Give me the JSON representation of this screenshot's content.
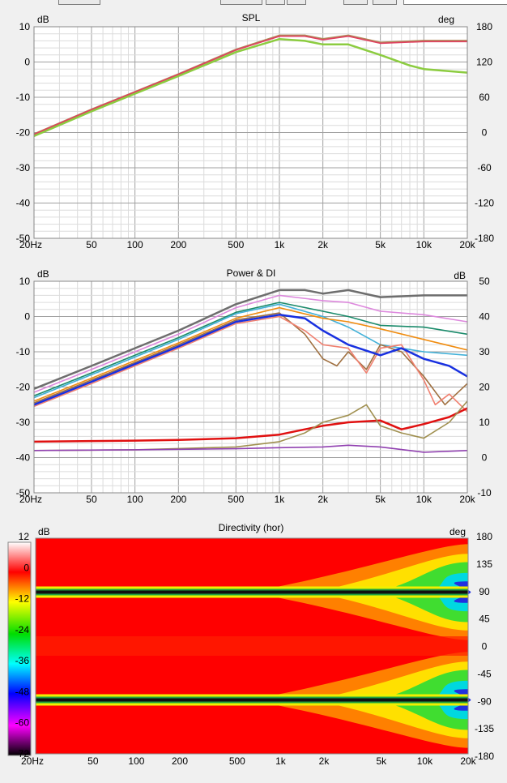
{
  "chart_data": [
    {
      "type": "line",
      "title": "SPL",
      "ylabel_left": "dB",
      "ylabel_right": "deg",
      "xscale": "log",
      "xlim": [
        20,
        20000
      ],
      "ylim_left": [
        -50,
        10
      ],
      "ylim_right": [
        -180,
        180
      ],
      "x_ticks": [
        "20Hz",
        "50",
        "100",
        "200",
        "500",
        "1k",
        "2k",
        "5k",
        "10k",
        "20k"
      ],
      "y_ticks_left": [
        "10",
        "0",
        "-10",
        "-20",
        "-30",
        "-40",
        "-50"
      ],
      "y_ticks_right": [
        "180",
        "120",
        "60",
        "0",
        "-60",
        "-120",
        "-180"
      ],
      "grid": true,
      "series": [
        {
          "color": "#b08a5a",
          "x": [
            20,
            50,
            100,
            200,
            500,
            1000,
            1500,
            2000,
            3000,
            5000,
            10000,
            20000
          ],
          "y": [
            -20.5,
            -13.5,
            -8.5,
            -3.5,
            3.5,
            7.5,
            7.5,
            6.5,
            7.5,
            5.5,
            6,
            6
          ]
        },
        {
          "color": "#e04060",
          "x": [
            20,
            50,
            100,
            200,
            500,
            1000,
            1500,
            2000,
            3000,
            5000,
            10000,
            20000
          ],
          "y": [
            -20.5,
            -13.5,
            -8.5,
            -3.5,
            3.4,
            7.3,
            7.3,
            6.3,
            7.3,
            5.3,
            5.8,
            5.8
          ]
        },
        {
          "color": "#8ccc40",
          "x": [
            20,
            50,
            100,
            200,
            500,
            1000,
            1500,
            2000,
            3000,
            5000,
            8000,
            10000,
            14000,
            20000
          ],
          "y": [
            -21,
            -14,
            -9,
            -4,
            2.8,
            6.5,
            6,
            5,
            5,
            2,
            -1,
            -2,
            -2.5,
            -3
          ]
        }
      ]
    },
    {
      "type": "line",
      "title": "Power & DI",
      "ylabel_left": "dB",
      "ylabel_right": "dB",
      "xscale": "log",
      "xlim": [
        20,
        20000
      ],
      "ylim_left": [
        -50,
        10
      ],
      "ylim_right": [
        -10,
        50
      ],
      "x_ticks": [
        "20Hz",
        "50",
        "100",
        "200",
        "500",
        "1k",
        "2k",
        "5k",
        "10k",
        "20k"
      ],
      "y_ticks_left": [
        "10",
        "0",
        "-10",
        "-20",
        "-30",
        "-40",
        "-50"
      ],
      "y_ticks_right": [
        "50",
        "40",
        "30",
        "20",
        "10",
        "0",
        "-10"
      ],
      "grid": true,
      "series": [
        {
          "color": "#6e6e6e",
          "x": [
            20,
            50,
            100,
            200,
            500,
            1000,
            1500,
            2000,
            3000,
            5000,
            10000,
            20000
          ],
          "y": [
            -20.5,
            -14,
            -9,
            -4,
            3.5,
            7.5,
            7.5,
            6.5,
            7.5,
            5.5,
            6,
            6
          ]
        },
        {
          "color": "#dd88dd",
          "x": [
            20,
            50,
            100,
            200,
            500,
            1000,
            2000,
            3000,
            5000,
            10000,
            20000
          ],
          "y": [
            -21.5,
            -15,
            -10,
            -5,
            2.5,
            6,
            4.5,
            4,
            1.5,
            0.5,
            -1.5
          ]
        },
        {
          "color": "#1a8a6a",
          "x": [
            20,
            50,
            100,
            200,
            500,
            1000,
            2000,
            3000,
            5000,
            10000,
            20000
          ],
          "y": [
            -22.5,
            -16,
            -11,
            -6,
            1.2,
            4,
            1.5,
            0,
            -2.5,
            -3,
            -5
          ]
        },
        {
          "color": "#40b0d8",
          "x": [
            20,
            50,
            100,
            200,
            500,
            1000,
            2000,
            3000,
            5000,
            10000,
            20000
          ],
          "y": [
            -23,
            -16.5,
            -11.5,
            -6.5,
            0.8,
            3.5,
            0,
            -3,
            -8,
            -10,
            -11
          ]
        },
        {
          "color": "#f08c10",
          "x": [
            20,
            50,
            100,
            200,
            500,
            1000,
            2000,
            3000,
            5000,
            10000,
            20000
          ],
          "y": [
            -24,
            -17.5,
            -12.5,
            -7.5,
            -0.5,
            2.5,
            -0.5,
            -1.5,
            -3.5,
            -6.5,
            -9.5
          ]
        },
        {
          "color": "#a07040",
          "x": [
            20,
            50,
            100,
            200,
            500,
            1000,
            1500,
            2000,
            2500,
            3000,
            4000,
            5000,
            7000,
            10000,
            14000,
            20000
          ],
          "y": [
            -24.5,
            -18,
            -13,
            -8,
            -1,
            1,
            -5,
            -12,
            -14,
            -10,
            -15,
            -8,
            -10,
            -17,
            -25,
            -19
          ]
        },
        {
          "color": "#f08070",
          "x": [
            20,
            50,
            100,
            200,
            500,
            1000,
            1500,
            2000,
            3000,
            4000,
            5000,
            7000,
            10000,
            12000,
            15000,
            20000
          ],
          "y": [
            -25.5,
            -19,
            -14,
            -9,
            -2,
            0,
            -4,
            -8,
            -9,
            -16,
            -9,
            -8,
            -18,
            -25,
            -22,
            -27
          ]
        },
        {
          "color": "#1830e0",
          "x": [
            20,
            50,
            100,
            200,
            500,
            1000,
            1500,
            2000,
            3000,
            5000,
            7000,
            10000,
            15000,
            20000
          ],
          "y": [
            -25,
            -18.5,
            -13.5,
            -8.5,
            -1.5,
            0.5,
            -0.5,
            -4,
            -8,
            -11,
            -9,
            -12,
            -14,
            -17
          ]
        },
        {
          "color": "#e01010",
          "x": [
            20,
            50,
            100,
            200,
            500,
            1000,
            1500,
            2000,
            3000,
            5000,
            7000,
            10000,
            15000,
            20000
          ],
          "y": [
            -35.5,
            -35.3,
            -35.2,
            -35,
            -34.5,
            -33.5,
            -32,
            -31,
            -30,
            -29.5,
            -32,
            -30.5,
            -28.5,
            -26
          ]
        },
        {
          "color": "#a09050",
          "x": [
            20,
            100,
            500,
            1000,
            1500,
            2000,
            3000,
            4000,
            5000,
            7000,
            10000,
            15000,
            20000
          ],
          "y": [
            -38,
            -37.8,
            -37,
            -35.5,
            -33,
            -30,
            -28,
            -25,
            -31,
            -33,
            -34.5,
            -30,
            -24
          ]
        },
        {
          "color": "#9040b0",
          "x": [
            20,
            100,
            500,
            1000,
            2000,
            3000,
            5000,
            8000,
            10000,
            20000
          ],
          "y": [
            -38,
            -37.8,
            -37.5,
            -37.2,
            -37,
            -36.5,
            -37,
            -38,
            -38.5,
            -38
          ]
        }
      ]
    },
    {
      "type": "heatmap",
      "title": "Directivity (hor)",
      "ylabel_left": "dB",
      "ylabel_right": "deg",
      "xscale": "log",
      "xlim": [
        20,
        20000
      ],
      "ylim": [
        -180,
        180
      ],
      "x_ticks": [
        "20Hz",
        "50",
        "100",
        "200",
        "500",
        "1k",
        "2k",
        "5k",
        "10k",
        "20k"
      ],
      "y_ticks_right": [
        "180",
        "135",
        "90",
        "45",
        "0",
        "-45",
        "-90",
        "-135",
        "-180"
      ],
      "colorbar_range": [
        -72,
        12
      ],
      "colorbar_ticks": [
        "12",
        "0",
        "-12",
        "-24",
        "-36",
        "-48",
        "-60",
        "-72"
      ],
      "colorbar_colors": [
        "#ffffff",
        "#ff0000",
        "#ffff00",
        "#00dd00",
        "#00ffff",
        "#0000ff",
        "#ff00ff",
        "#000000"
      ],
      "nulls_deg": [
        90,
        -90
      ]
    }
  ]
}
